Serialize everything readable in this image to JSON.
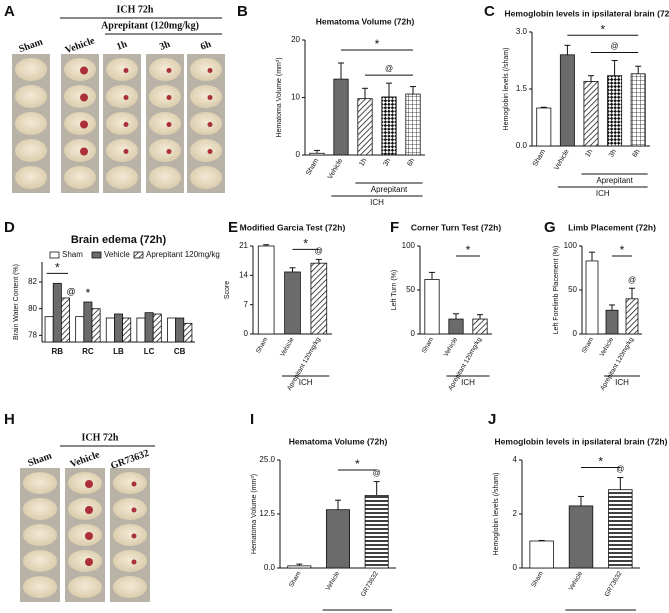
{
  "images": [
    {
      "label": "A",
      "header": "ICH 72h",
      "subheader": "Aprepitant (120mg/kg)",
      "columns": [
        "Sham",
        "Vehicle",
        "1h",
        "3h",
        "6h"
      ]
    },
    {
      "label": "H",
      "header": "ICH 72h",
      "columns": [
        "Sham",
        "Vehicle",
        "GR73632"
      ]
    }
  ],
  "chart_data": [
    {
      "type": "bar",
      "label": "B",
      "title": "Hematoma Volume (72h)",
      "ylabel": "Hematoma Volume (mm³)",
      "categories": [
        "Sham",
        "Vehicle",
        "1h",
        "3h",
        "6h"
      ],
      "values": [
        0.3,
        13.2,
        9.8,
        10.1,
        10.6
      ],
      "errors": [
        0.5,
        2.8,
        1.8,
        2.4,
        1.3
      ],
      "colors": [
        "#ffffff",
        "#6b6b6b",
        "#ffffff",
        "#ffffff",
        "#ffffff"
      ],
      "patterns": [
        "solid",
        "solid",
        "hatch",
        "cross",
        "grid"
      ],
      "ylim": [
        0,
        20
      ],
      "yticks": [
        0,
        10,
        20
      ],
      "groups": [
        "Aprepitant",
        "ICH"
      ],
      "annotations": [
        "*",
        "@"
      ]
    },
    {
      "type": "bar",
      "label": "C",
      "title": "Hemoglobin levels in ipsilateral brain (72h)",
      "ylabel": "Hemoglobin levels (/sham)",
      "categories": [
        "Sham",
        "Vehicle",
        "1h",
        "3h",
        "6h"
      ],
      "values": [
        1.0,
        2.4,
        1.7,
        1.85,
        1.9
      ],
      "errors": [
        0.02,
        0.25,
        0.15,
        0.4,
        0.2
      ],
      "colors": [
        "#ffffff",
        "#6b6b6b",
        "#ffffff",
        "#ffffff",
        "#ffffff"
      ],
      "patterns": [
        "solid",
        "solid",
        "hatch",
        "cross",
        "grid"
      ],
      "ylim": [
        0,
        3
      ],
      "yticks": [
        {
          "value": 0,
          "label": "0.0"
        },
        1.5,
        {
          "value": 3,
          "label": "3.0"
        }
      ],
      "groups": [
        "Aprepitant",
        "ICH"
      ],
      "annotations": [
        "*",
        "@"
      ]
    },
    {
      "type": "bar",
      "label": "D",
      "title": "Brain edema (72h)",
      "ylabel": "Brain Water Content (%)",
      "categories": [
        "RB",
        "RC",
        "LB",
        "LC",
        "CB"
      ],
      "series": [
        {
          "name": "Sham",
          "color": "#ffffff",
          "pattern": "solid",
          "values": [
            79.4,
            79.4,
            79.3,
            79.3,
            79.3
          ]
        },
        {
          "name": "Vehicle",
          "color": "#6b6b6b",
          "pattern": "solid",
          "values": [
            81.9,
            80.5,
            79.6,
            79.7,
            79.3
          ]
        },
        {
          "name": "Aprepitant 120mg/kg",
          "color": "#ffffff",
          "pattern": "hatch",
          "values": [
            80.8,
            80.0,
            79.3,
            79.6,
            78.9
          ]
        }
      ],
      "ylim": [
        77.5,
        83.5
      ],
      "yticks": [
        78,
        80,
        82
      ],
      "legend": "top",
      "annotations": [
        "*",
        "*",
        "@"
      ]
    },
    {
      "type": "bar",
      "label": "E",
      "title": "Modified Garcia Test (72h)",
      "ylabel": "Score",
      "categories": [
        "Sham",
        "Vehicle",
        "Aprepitant 120mg/kg"
      ],
      "values": [
        21,
        14.8,
        16.9
      ],
      "errors": [
        0.3,
        1.0,
        0.9
      ],
      "colors": [
        "#ffffff",
        "#6b6b6b",
        "#ffffff"
      ],
      "patterns": [
        "solid",
        "solid",
        "hatch"
      ],
      "ylim": [
        0,
        21
      ],
      "yticks": [
        0,
        7,
        14,
        21
      ],
      "groups": [
        "ICH"
      ],
      "annotations": [
        "*",
        "@"
      ]
    },
    {
      "type": "bar",
      "label": "F",
      "title": "Corner Turn Test (72h)",
      "ylabel": "Left Turn (%)",
      "categories": [
        "Sham",
        "Vehicle",
        "Aprepitant 120mg/kg"
      ],
      "values": [
        62,
        17,
        17
      ],
      "errors": [
        8,
        6,
        5
      ],
      "colors": [
        "#ffffff",
        "#6b6b6b",
        "#ffffff"
      ],
      "patterns": [
        "solid",
        "solid",
        "hatch"
      ],
      "ylim": [
        0,
        100
      ],
      "yticks": [
        0,
        50,
        100
      ],
      "groups": [
        "ICH"
      ],
      "annotations": [
        "*"
      ]
    },
    {
      "type": "bar",
      "label": "G",
      "title": "Limb Placement (72h)",
      "ylabel": "Left Forelimb Placement (%)",
      "categories": [
        "Sham",
        "Vehicle",
        "Aprepitant 120mg/kg"
      ],
      "values": [
        83,
        27,
        40
      ],
      "errors": [
        10,
        6,
        12
      ],
      "colors": [
        "#ffffff",
        "#6b6b6b",
        "#ffffff"
      ],
      "patterns": [
        "solid",
        "solid",
        "hatch"
      ],
      "ylim": [
        0,
        100
      ],
      "yticks": [
        0,
        50,
        100
      ],
      "groups": [
        "ICH"
      ],
      "annotations": [
        "*",
        "@"
      ]
    },
    {
      "type": "bar",
      "label": "I",
      "title": "Hematoma Volume (72h)",
      "ylabel": "Hematoma Volume (mm³)",
      "categories": [
        "Sham",
        "Vehicle",
        "GR73632"
      ],
      "values": [
        0.5,
        13.5,
        16.8
      ],
      "errors": [
        0.4,
        2.2,
        3.2
      ],
      "colors": [
        "#ffffff",
        "#6b6b6b",
        "#ffffff"
      ],
      "patterns": [
        "solid",
        "solid",
        "stripes"
      ],
      "ylim": [
        0,
        25
      ],
      "yticks": [
        {
          "value": 0,
          "label": "0.0"
        },
        12.5,
        {
          "value": 25,
          "label": "25.0"
        }
      ],
      "groups": [
        "ICH"
      ],
      "annotations": [
        "*",
        "@"
      ]
    },
    {
      "type": "bar",
      "label": "J",
      "title": "Hemoglobin levels in ipsilateral brain (72h)",
      "ylabel": "Hemoglobin levels (/sham)",
      "categories": [
        "Sham",
        "Vehicle",
        "GR73632"
      ],
      "values": [
        1.0,
        2.3,
        2.9
      ],
      "errors": [
        0.02,
        0.35,
        0.45
      ],
      "colors": [
        "#ffffff",
        "#6b6b6b",
        "#ffffff"
      ],
      "patterns": [
        "solid",
        "solid",
        "stripes"
      ],
      "ylim": [
        0,
        4
      ],
      "yticks": [
        0,
        2,
        4
      ],
      "groups": [
        "ICH"
      ],
      "annotations": [
        "*",
        "@"
      ]
    }
  ]
}
